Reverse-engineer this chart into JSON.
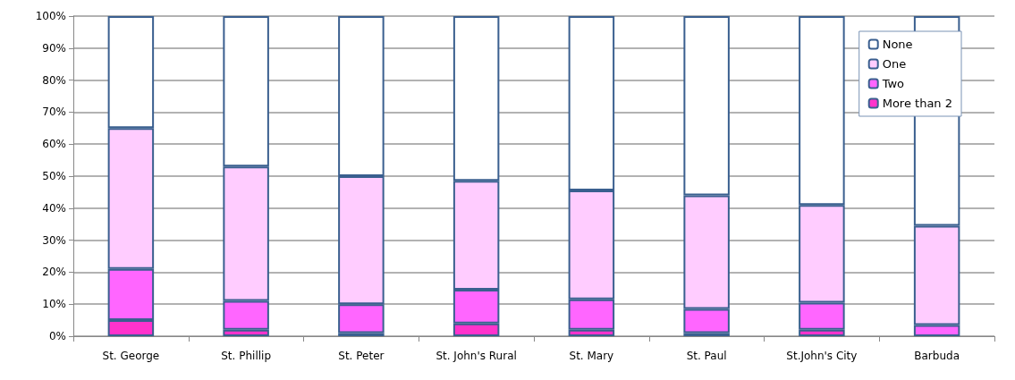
{
  "chart_data": {
    "type": "bar",
    "stacked": true,
    "categories": [
      "St. George",
      "St. Phillip",
      "St. Peter",
      "St. John's Rural",
      "St. Mary",
      "St. Paul",
      "St.John's City",
      "Barbuda"
    ],
    "series": [
      {
        "name": "More than 2",
        "color": "#ff33cc",
        "values": [
          5,
          2,
          1,
          4,
          2,
          1,
          2,
          null
        ]
      },
      {
        "name": "Two",
        "color": "#ff66ff",
        "values": [
          16,
          9,
          9,
          10.5,
          9.5,
          7.5,
          8.5,
          3.5
        ]
      },
      {
        "name": "One",
        "color": "#ffccff",
        "values": [
          44,
          42,
          40,
          34,
          34,
          35.5,
          30.5,
          31
        ]
      },
      {
        "name": "None",
        "color": "#ffffff",
        "values": [
          35,
          47,
          50,
          51.5,
          54.5,
          56,
          59,
          65.5
        ]
      }
    ],
    "ylim": [
      0,
      100
    ],
    "yticks": [
      {
        "value": 0,
        "label": "0%"
      },
      {
        "value": 10,
        "label": "10%"
      },
      {
        "value": 20,
        "label": "20%"
      },
      {
        "value": 30,
        "label": "30%"
      },
      {
        "value": 40,
        "label": "40%"
      },
      {
        "value": 50,
        "label": "50%"
      },
      {
        "value": 60,
        "label": "60%"
      },
      {
        "value": 70,
        "label": "70%"
      },
      {
        "value": 80,
        "label": "80%"
      },
      {
        "value": 90,
        "label": "90%"
      },
      {
        "value": 100,
        "label": "100%"
      }
    ],
    "grid": true,
    "legend": "top right"
  }
}
